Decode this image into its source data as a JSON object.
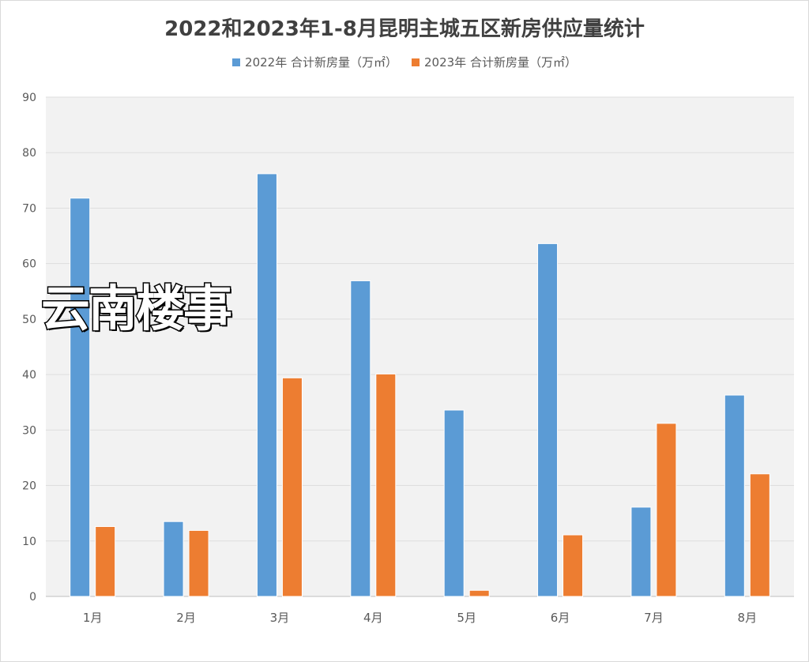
{
  "chart_data": {
    "type": "bar",
    "title": "2022和2023年1-8月昆明主城五区新房供应量统计",
    "categories": [
      "1月",
      "2月",
      "3月",
      "4月",
      "5月",
      "6月",
      "7月",
      "8月"
    ],
    "series": [
      {
        "name": "2022年 合计新房量（万㎡）",
        "color": "#5b9bd5",
        "values": [
          71.8,
          13.5,
          76.2,
          56.9,
          33.6,
          63.6,
          16.1,
          36.3
        ]
      },
      {
        "name": "2023年 合计新房量（万㎡）",
        "color": "#ed7d31",
        "values": [
          12.6,
          11.9,
          39.4,
          40.1,
          1.1,
          11.1,
          31.2,
          22.1
        ]
      }
    ],
    "ylim": [
      0,
      90
    ],
    "yticks": [
      0,
      10,
      20,
      30,
      40,
      50,
      60,
      70,
      80,
      90
    ],
    "grid": true,
    "legend_position": "top",
    "xlabel": "",
    "ylabel": ""
  },
  "watermark": "云南楼事"
}
